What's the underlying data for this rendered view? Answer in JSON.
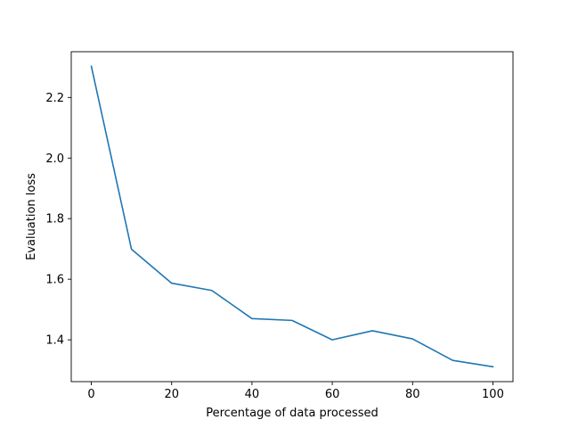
{
  "chart_data": {
    "type": "line",
    "title": "",
    "xlabel": "Percentage of data processed",
    "ylabel": "Evaluation loss",
    "xlim": [
      -5,
      105
    ],
    "ylim": [
      1.262,
      2.351
    ],
    "xticks": [
      0,
      20,
      40,
      60,
      80,
      100
    ],
    "yticks": [
      1.4,
      1.6,
      1.8,
      2.0,
      2.2
    ],
    "x": [
      0,
      10,
      20,
      30,
      40,
      50,
      60,
      70,
      80,
      90,
      100
    ],
    "series": [
      {
        "values": [
          2.303,
          1.699,
          1.587,
          1.563,
          1.47,
          1.464,
          1.4,
          1.43,
          1.403,
          1.332,
          1.311
        ],
        "color": "#1f77b4"
      }
    ],
    "grid": false,
    "legend": "none"
  }
}
